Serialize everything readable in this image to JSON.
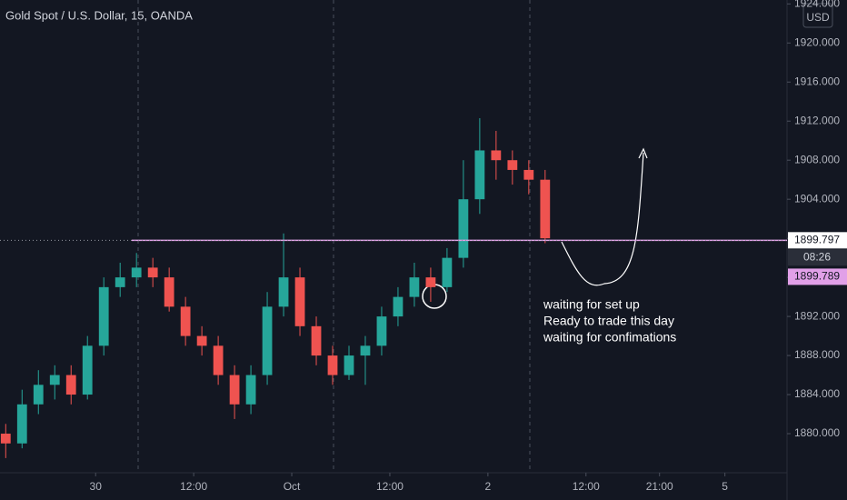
{
  "chart_data": {
    "type": "candlestick",
    "title": "Gold Spot / U.S. Dollar, 15, OANDA",
    "currency": "USD",
    "up_color": "#26a69a",
    "down_color": "#ef5350",
    "xlim": [
      -11.7,
      84.6
    ],
    "ylim": [
      1876,
      1924.4
    ],
    "xticks": [
      {
        "value": 0,
        "label": "30"
      },
      {
        "value": 12,
        "label": "12:00"
      },
      {
        "value": 24,
        "label": "Oct"
      },
      {
        "value": 36,
        "label": "12:00"
      },
      {
        "value": 48,
        "label": "2"
      },
      {
        "value": 60,
        "label": "12:00"
      },
      {
        "value": 69,
        "label": "21:00"
      },
      {
        "value": 77,
        "label": "5"
      }
    ],
    "yticks": [
      {
        "value": 1880,
        "label": "1880.000"
      },
      {
        "value": 1884,
        "label": "1884.000"
      },
      {
        "value": 1888,
        "label": "1888.000"
      },
      {
        "value": 1892,
        "label": "1892.000"
      },
      {
        "value": 1896,
        "label": "1896.000"
      },
      {
        "value": 1900,
        "label": "1900.000"
      },
      {
        "value": 1904,
        "label": "1904.000"
      },
      {
        "value": 1908,
        "label": "1908.000"
      },
      {
        "value": 1912,
        "label": "1912.000"
      },
      {
        "value": 1916,
        "label": "1916.000"
      },
      {
        "value": 1920,
        "label": "1920.000"
      },
      {
        "value": 1924,
        "label": "1924.000"
      }
    ],
    "x": [
      -11,
      -9,
      -7,
      -5,
      -3,
      -1,
      1,
      3,
      5,
      7,
      9,
      11,
      13,
      15,
      17,
      19,
      21,
      23,
      25,
      27,
      29,
      31,
      33,
      35,
      37,
      39,
      41,
      43,
      45,
      47,
      49,
      51,
      53,
      55
    ],
    "open": [
      1880,
      1879,
      1883,
      1885,
      1886,
      1884,
      1889,
      1895,
      1896,
      1897,
      1896,
      1893,
      1890,
      1889,
      1886,
      1883,
      1886,
      1893,
      1896,
      1891,
      1888,
      1886,
      1888,
      1889,
      1892,
      1894,
      1896,
      1895,
      1898,
      1904,
      1909,
      1908,
      1907,
      1906
    ],
    "high": [
      1881,
      1884.5,
      1886.5,
      1887,
      1887,
      1890,
      1896,
      1897.5,
      1898.5,
      1898,
      1897,
      1894,
      1891,
      1890,
      1887,
      1887,
      1894.5,
      1900.5,
      1897,
      1892,
      1889,
      1889,
      1890,
      1893,
      1895,
      1897.5,
      1897,
      1899,
      1908,
      1912.3,
      1911,
      1909,
      1908,
      1907
    ],
    "low": [
      1877.5,
      1878.5,
      1882,
      1883.5,
      1883,
      1883.5,
      1888,
      1894,
      1895,
      1895,
      1892.5,
      1889,
      1888,
      1885,
      1881.5,
      1882,
      1885,
      1892,
      1890,
      1887,
      1885,
      1885.5,
      1885,
      1888,
      1891,
      1893,
      1893.5,
      1894.5,
      1897,
      1902.5,
      1906,
      1905.5,
      1904.5,
      1899.5
    ],
    "close": [
      1879,
      1883,
      1885,
      1886,
      1884,
      1889,
      1895,
      1896,
      1897,
      1896,
      1893,
      1890,
      1889,
      1886,
      1883,
      1886,
      1893,
      1896,
      1891,
      1888,
      1886,
      1888,
      1889,
      1892,
      1894,
      1896,
      1895,
      1898,
      1904,
      1909,
      1908,
      1907,
      1906,
      1900
    ],
    "horizontal_line": 1899.789,
    "horizontal_line_color": "#e1a0e8",
    "last_price": 1899.797,
    "countdown": "08:26",
    "annotations": [
      "waiting for set up",
      "Ready to trade this day",
      "waiting for confimations"
    ]
  }
}
